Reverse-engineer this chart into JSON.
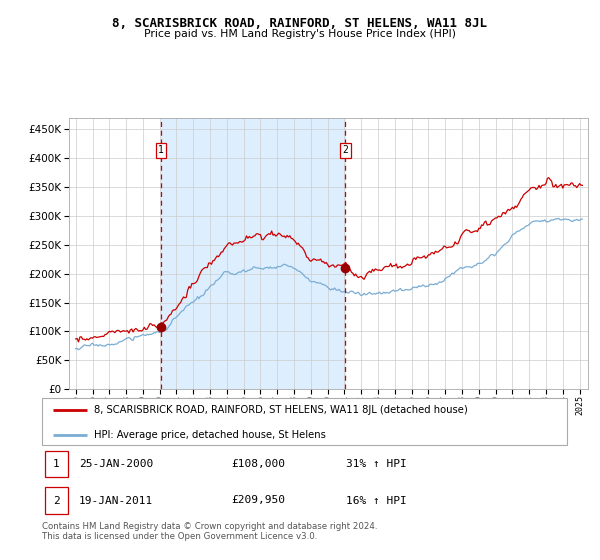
{
  "title": "8, SCARISBRICK ROAD, RAINFORD, ST HELENS, WA11 8JL",
  "subtitle": "Price paid vs. HM Land Registry's House Price Index (HPI)",
  "legend_line1": "8, SCARISBRICK ROAD, RAINFORD, ST HELENS, WA11 8JL (detached house)",
  "legend_line2": "HPI: Average price, detached house, St Helens",
  "sale1_date": "25-JAN-2000",
  "sale1_price": 108000,
  "sale1_hpi": "31% ↑ HPI",
  "sale2_date": "19-JAN-2011",
  "sale2_price": 209950,
  "sale2_hpi": "16% ↑ HPI",
  "footnote": "Contains HM Land Registry data © Crown copyright and database right 2024.\nThis data is licensed under the Open Government Licence v3.0.",
  "line_color_property": "#cc0000",
  "line_color_hpi": "#7aadd4",
  "sale_marker_color": "#990000",
  "dashed_line_color": "#cc0000",
  "shade_color": "#ddeeff",
  "grid_color": "#cccccc",
  "background_color": "#ffffff",
  "chart_bg": "#ffffff",
  "ylim": [
    0,
    470000
  ],
  "yticks": [
    0,
    50000,
    100000,
    150000,
    200000,
    250000,
    300000,
    350000,
    400000,
    450000
  ],
  "sale1_x": 2000.07,
  "sale2_x": 2011.05,
  "xlim_left": 1994.6,
  "xlim_right": 2025.5
}
